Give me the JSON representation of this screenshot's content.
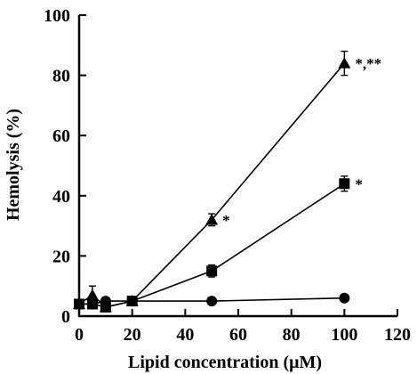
{
  "chart_data": {
    "type": "line",
    "xlabel": "Lipid concentration (μM)",
    "ylabel": "Hemolysis (%)",
    "xlim": [
      0,
      120
    ],
    "ylim": [
      0,
      100
    ],
    "xticks": [
      0,
      20,
      40,
      60,
      80,
      100,
      120
    ],
    "yticks": [
      0,
      20,
      40,
      60,
      80,
      100
    ],
    "grid": false,
    "series": [
      {
        "marker": "triangle",
        "x": [
          0,
          5,
          10,
          20,
          50,
          100
        ],
        "y": [
          4,
          7,
          3,
          5,
          32,
          84
        ],
        "err": [
          0.8,
          3,
          1.5,
          1,
          2,
          4
        ]
      },
      {
        "marker": "square",
        "x": [
          0,
          5,
          10,
          20,
          50,
          100
        ],
        "y": [
          4,
          4,
          3,
          5,
          15,
          44
        ],
        "err": [
          0.8,
          1,
          1,
          1,
          2,
          2.5
        ]
      },
      {
        "marker": "circle",
        "x": [
          0,
          5,
          10,
          20,
          50,
          100
        ],
        "y": [
          4,
          4,
          5,
          5,
          5,
          6
        ],
        "err": [
          0.5,
          0.5,
          0.8,
          0.5,
          0.5,
          0.5
        ]
      }
    ],
    "annotations": [
      {
        "text": "*,**",
        "x": 100,
        "y": 84
      },
      {
        "text": "*",
        "x": 100,
        "y": 44
      },
      {
        "text": "*",
        "x": 50,
        "y": 32
      }
    ]
  }
}
